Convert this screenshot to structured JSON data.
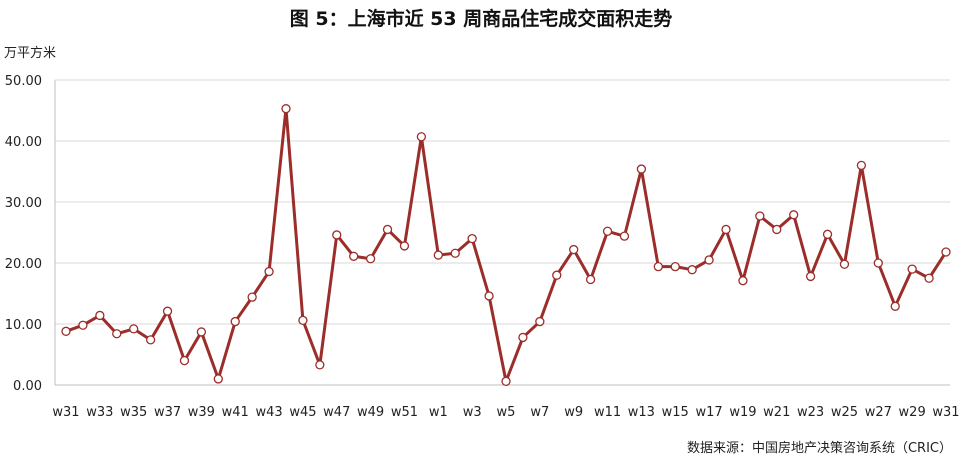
{
  "chart_data": {
    "type": "line",
    "title": "图 5：上海市近 53 周商品住宅成交面积走势",
    "ylabel": "万平方米",
    "source": "数据来源：中国房地产决策咨询系统（CRIC）",
    "ylim": [
      0,
      50
    ],
    "yticks": [
      "0.00",
      "10.00",
      "20.00",
      "30.00",
      "40.00",
      "50.00"
    ],
    "grid": true,
    "legend": "none",
    "line_color": "#9b2d2a",
    "x": [
      "w31",
      "w32",
      "w33",
      "w34",
      "w35",
      "w36",
      "w37",
      "w38",
      "w39",
      "w40",
      "w41",
      "w42",
      "w43",
      "w44",
      "w45",
      "w46",
      "w47",
      "w48",
      "w49",
      "w50",
      "w51",
      "w52",
      "w1",
      "w2",
      "w3",
      "w4",
      "w5",
      "w6",
      "w7",
      "w8",
      "w9",
      "w10",
      "w11",
      "w12",
      "w13",
      "w14",
      "w15",
      "w16",
      "w17",
      "w18",
      "w19",
      "w20",
      "w21",
      "w22",
      "w23",
      "w24",
      "w25",
      "w26",
      "w27",
      "w28",
      "w29",
      "w30",
      "w31"
    ],
    "xtick_labels": [
      "w31",
      "w33",
      "w35",
      "w37",
      "w39",
      "w41",
      "w43",
      "w45",
      "w47",
      "w49",
      "w51",
      "w1",
      "w3",
      "w5",
      "w7",
      "w9",
      "w11",
      "w13",
      "w15",
      "w17",
      "w19",
      "w21",
      "w23",
      "w25",
      "w27",
      "w29",
      "w31"
    ],
    "series": [
      {
        "values": [
          8.8,
          9.8,
          11.4,
          8.4,
          9.2,
          7.4,
          12.1,
          4.0,
          8.7,
          1.0,
          10.4,
          14.4,
          18.6,
          45.3,
          10.6,
          3.3,
          24.6,
          21.1,
          20.7,
          25.5,
          22.8,
          40.7,
          21.3,
          21.6,
          24.0,
          14.6,
          0.6,
          7.8,
          10.4,
          18.0,
          22.2,
          17.3,
          25.2,
          24.4,
          35.4,
          19.4,
          19.4,
          18.9,
          20.5,
          25.5,
          17.1,
          27.7,
          25.5,
          27.9,
          17.8,
          24.7,
          19.8,
          36.0,
          20.0,
          12.9,
          19.0,
          17.5,
          21.8
        ]
      }
    ]
  }
}
